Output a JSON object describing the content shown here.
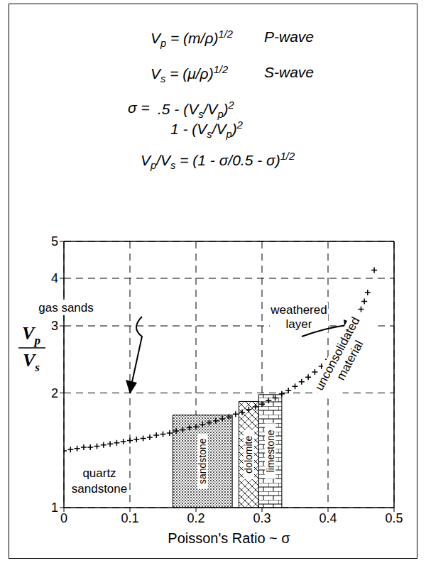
{
  "equations": [
    {
      "segments": [
        {
          "t": "V"
        },
        {
          "sub": "p"
        },
        {
          "t": " = (m/ρ)"
        },
        {
          "sup": "1/2"
        }
      ],
      "label": "P-wave"
    },
    {
      "segments": [
        {
          "t": "V"
        },
        {
          "sub": "s"
        },
        {
          "t": " = (μ/ρ)"
        },
        {
          "sup": "1/2"
        }
      ],
      "label": "S-wave"
    },
    {
      "lhs": "σ = ",
      "numerator": [
        {
          "t": ".5 - (V"
        },
        {
          "sub": "s"
        },
        {
          "t": "/V"
        },
        {
          "sub": "p"
        },
        {
          "t": ")"
        },
        {
          "sup": "2"
        }
      ],
      "denominator": [
        {
          "t": "1 - (V"
        },
        {
          "sub": "s"
        },
        {
          "t": "/V"
        },
        {
          "sub": "p"
        },
        {
          "t": ")"
        },
        {
          "sup": "2"
        }
      ]
    },
    {
      "segments": [
        {
          "t": "V"
        },
        {
          "sub": "p"
        },
        {
          "t": "/V"
        },
        {
          "sub": "s"
        },
        {
          "t": " = (1 - σ/0.5 - σ)"
        },
        {
          "sup": "1/2"
        }
      ]
    }
  ],
  "chart_data": {
    "type": "scatter",
    "xlabel": "Poisson's Ratio ~ σ",
    "ylabel": {
      "numerator": [
        {
          "t": "V"
        },
        {
          "sub": "p"
        }
      ],
      "denominator": [
        {
          "t": "V"
        },
        {
          "sub": "s"
        }
      ]
    },
    "x": [
      0,
      0.01,
      0.02,
      0.03,
      0.04,
      0.05,
      0.06,
      0.07,
      0.08,
      0.09,
      0.1,
      0.11,
      0.12,
      0.13,
      0.14,
      0.15,
      0.16,
      0.17,
      0.18,
      0.19,
      0.2,
      0.21,
      0.22,
      0.23,
      0.24,
      0.25,
      0.26,
      0.27,
      0.28,
      0.29,
      0.3,
      0.31,
      0.32,
      0.33,
      0.34,
      0.35,
      0.36,
      0.37,
      0.38,
      0.39,
      0.4,
      0.41,
      0.42,
      0.43,
      0.44,
      0.45,
      0.455,
      0.46,
      0.47
    ],
    "values": [
      1.41,
      1.42,
      1.43,
      1.44,
      1.44,
      1.45,
      1.46,
      1.47,
      1.48,
      1.49,
      1.5,
      1.51,
      1.52,
      1.53,
      1.55,
      1.56,
      1.57,
      1.59,
      1.6,
      1.62,
      1.63,
      1.65,
      1.67,
      1.69,
      1.71,
      1.73,
      1.76,
      1.78,
      1.81,
      1.84,
      1.87,
      1.91,
      1.94,
      1.99,
      2.03,
      2.08,
      2.14,
      2.2,
      2.27,
      2.35,
      2.45,
      2.56,
      2.69,
      2.85,
      3.06,
      3.32,
      3.48,
      3.67,
      4.2
    ],
    "marker": "plus",
    "color": "#000000",
    "xlim": [
      0,
      0.5
    ],
    "ylim": [
      1,
      5
    ],
    "xticks": [
      0,
      0.1,
      0.2,
      0.3,
      0.4,
      0.5
    ],
    "yticks": [
      1,
      2,
      3,
      4,
      5
    ],
    "log": "y",
    "grid": true,
    "rock_types": [
      {
        "label": "sandstone",
        "x_range": [
          0.165,
          0.255
        ],
        "top": 1.75
      },
      {
        "label": "dolomite",
        "x_range": [
          0.265,
          0.295
        ],
        "top": 1.9
      },
      {
        "label": "limestone",
        "x_range": [
          0.295,
          0.33
        ],
        "top": 1.98
      }
    ],
    "annotations": [
      "quartz sandstone",
      "gas sands",
      "weathered layer",
      "unconsolidated material"
    ]
  }
}
